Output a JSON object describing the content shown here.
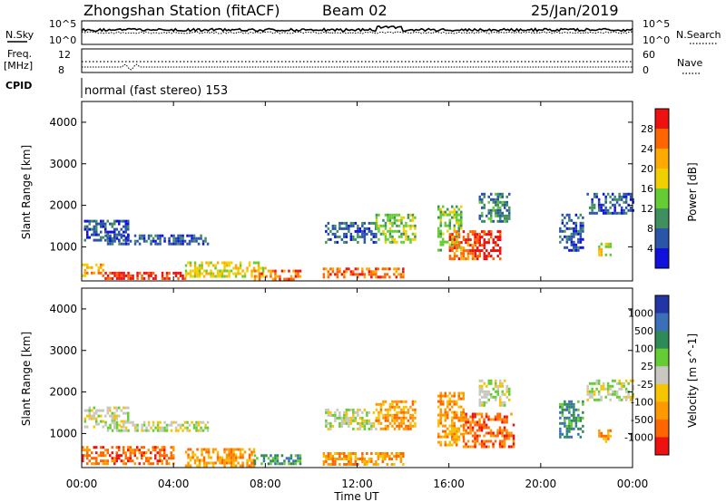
{
  "header": {
    "station": "Zhongshan Station (fitACF)",
    "beam": "Beam 02",
    "date": "25/Jan/2019"
  },
  "top_panels": {
    "nsky_label": "N.Sky",
    "nsky_ticks": [
      "10^5",
      "10^0"
    ],
    "nsearch_label": "N.Search",
    "nsearch_ticks": [
      "10^5",
      "10^0"
    ],
    "freq_label": "Freq.",
    "freq_unit": "[MHz]",
    "freq_ticks": [
      "12",
      "8"
    ],
    "nave_label": "Nave",
    "nave_ticks": [
      "60",
      "0"
    ],
    "cpid_label": "CPID",
    "cpid_value": "normal (fast stereo) 153"
  },
  "chart_data": [
    {
      "type": "heatmap",
      "title": "",
      "ylabel": "Slant Range [km]",
      "ylim": [
        180,
        4500
      ],
      "yticks": [
        "1000",
        "2000",
        "3000",
        "4000"
      ],
      "xlim": [
        0,
        24
      ],
      "colorbar_label": "Power [dB]",
      "colorbar_ticks": [
        "28",
        "24",
        "20",
        "16",
        "12",
        "8",
        "4"
      ],
      "colors": [
        "#ee1111",
        "#ff6600",
        "#ffaa00",
        "#f0d000",
        "#66cc33",
        "#3f8f5f",
        "#2b55a8",
        "#1111dd"
      ],
      "echo_regions": [
        {
          "t0": 0.1,
          "t1": 2.0,
          "r0": 1150,
          "r1": 1650,
          "level": 6
        },
        {
          "t0": 1.0,
          "t1": 5.5,
          "r0": 1050,
          "r1": 1300,
          "level": 6
        },
        {
          "t0": 0.0,
          "t1": 1.0,
          "r0": 300,
          "r1": 600,
          "level": 2
        },
        {
          "t0": 1.0,
          "t1": 4.5,
          "r0": 250,
          "r1": 400,
          "level": 0
        },
        {
          "t0": 4.5,
          "t1": 8.0,
          "r0": 300,
          "r1": 650,
          "level": 3
        },
        {
          "t0": 7.5,
          "t1": 9.5,
          "r0": 250,
          "r1": 450,
          "level": 1
        },
        {
          "t0": 10.5,
          "t1": 14.0,
          "r0": 250,
          "r1": 500,
          "level": 1
        },
        {
          "t0": 10.6,
          "t1": 12.8,
          "r0": 1100,
          "r1": 1600,
          "level": 6
        },
        {
          "t0": 12.8,
          "t1": 14.5,
          "r0": 1100,
          "r1": 1800,
          "level": 4
        },
        {
          "t0": 15.5,
          "t1": 16.5,
          "r0": 900,
          "r1": 2000,
          "level": 4
        },
        {
          "t0": 16.0,
          "t1": 17.2,
          "r0": 700,
          "r1": 1400,
          "level": 1
        },
        {
          "t0": 17.0,
          "t1": 18.2,
          "r0": 700,
          "r1": 1400,
          "level": 0
        },
        {
          "t0": 17.3,
          "t1": 18.6,
          "r0": 1600,
          "r1": 2300,
          "level": 5
        },
        {
          "t0": 20.8,
          "t1": 21.8,
          "r0": 900,
          "r1": 1800,
          "level": 6
        },
        {
          "t0": 22.0,
          "t1": 24.0,
          "r0": 1800,
          "r1": 2300,
          "level": 6
        },
        {
          "t0": 22.5,
          "t1": 23.0,
          "r0": 800,
          "r1": 1100,
          "level": 3
        }
      ]
    },
    {
      "type": "heatmap",
      "title": "",
      "ylabel": "Slant Range [km]",
      "ylim": [
        180,
        4500
      ],
      "yticks": [
        "1000",
        "2000",
        "3000",
        "4000"
      ],
      "xlim": [
        0,
        24
      ],
      "xticks": [
        "00:00",
        "04:00",
        "08:00",
        "12:00",
        "16:00",
        "20:00",
        "00:00"
      ],
      "xlabel": "Time UT",
      "colorbar_label": "Velocity [m s^-1]",
      "colorbar_ticks": [
        "1000",
        "500",
        "100",
        "25",
        "-25",
        "-100",
        "-500",
        "-1000"
      ],
      "colors": [
        "#2235a5",
        "#3b6fb8",
        "#2e8a57",
        "#66cc33",
        "#c8c8c0",
        "#f6c400",
        "#ff9900",
        "#ff6600",
        "#ee1111"
      ],
      "echo_regions": [
        {
          "t0": 0.1,
          "t1": 2.0,
          "r0": 1150,
          "r1": 1650,
          "level": 4
        },
        {
          "t0": 1.0,
          "t1": 5.5,
          "r0": 1050,
          "r1": 1300,
          "level": 4
        },
        {
          "t0": 0.0,
          "t1": 4.0,
          "r0": 250,
          "r1": 700,
          "level": 7
        },
        {
          "t0": 4.5,
          "t1": 7.5,
          "r0": 250,
          "r1": 650,
          "level": 6
        },
        {
          "t0": 7.5,
          "t1": 9.5,
          "r0": 250,
          "r1": 500,
          "level": 2
        },
        {
          "t0": 10.5,
          "t1": 14.0,
          "r0": 250,
          "r1": 550,
          "level": 6
        },
        {
          "t0": 10.6,
          "t1": 12.8,
          "r0": 1100,
          "r1": 1600,
          "level": 4
        },
        {
          "t0": 12.8,
          "t1": 14.5,
          "r0": 1100,
          "r1": 1800,
          "level": 6
        },
        {
          "t0": 15.5,
          "t1": 16.6,
          "r0": 700,
          "r1": 2000,
          "level": 6
        },
        {
          "t0": 16.6,
          "t1": 18.8,
          "r0": 700,
          "r1": 1500,
          "level": 7
        },
        {
          "t0": 17.3,
          "t1": 18.6,
          "r0": 1700,
          "r1": 2300,
          "level": 4
        },
        {
          "t0": 20.8,
          "t1": 21.8,
          "r0": 900,
          "r1": 1800,
          "level": 2
        },
        {
          "t0": 22.0,
          "t1": 24.0,
          "r0": 1800,
          "r1": 2300,
          "level": 4
        },
        {
          "t0": 22.5,
          "t1": 23.0,
          "r0": 800,
          "r1": 1100,
          "level": 6
        }
      ]
    }
  ]
}
